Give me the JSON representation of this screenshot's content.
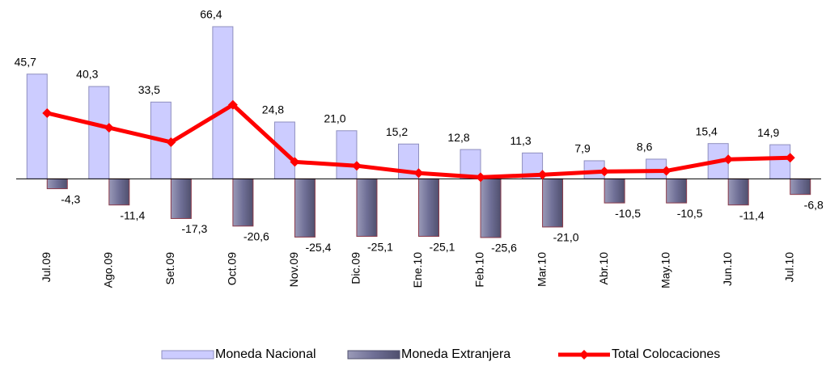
{
  "chart_data": {
    "type": "bar",
    "categories": [
      "Jul.09",
      "Ago.09",
      "Set.09",
      "Oct.09",
      "Nov.09",
      "Dic.09",
      "Ene.10",
      "Feb.10",
      "Mar.10",
      "Abr.10",
      "May.10",
      "Jun.10",
      "Jul.10"
    ],
    "series": [
      {
        "name": "Moneda Nacional",
        "type": "bar",
        "color": "#ccccff",
        "values": [
          45.7,
          40.3,
          33.5,
          66.4,
          24.8,
          21.0,
          15.2,
          12.8,
          11.3,
          7.9,
          8.6,
          15.4,
          14.9
        ],
        "value_labels": [
          "45,7",
          "40,3",
          "33,5",
          "66,4",
          "24,8",
          "21,0",
          "15,2",
          "12,8",
          "11,3",
          "7,9",
          "8,6",
          "15,4",
          "14,9"
        ]
      },
      {
        "name": "Moneda Extranjera",
        "type": "bar",
        "color": "#6f6f96",
        "values": [
          -4.3,
          -11.4,
          -17.3,
          -20.6,
          -25.4,
          -25.1,
          -25.1,
          -25.6,
          -21.0,
          -10.5,
          -10.5,
          -11.4,
          -6.8
        ],
        "value_labels": [
          "-4,3",
          "-11,4",
          "-17,3",
          "-20,6",
          "-25,4",
          "-25,1",
          "-25,1",
          "-25,6",
          "-21,0",
          "-10,5",
          "-10,5",
          "-11,4",
          "-6,8"
        ]
      },
      {
        "name": "Total Colocaciones",
        "type": "line",
        "color": "#ff0000",
        "values": [
          28.7,
          22.3,
          16.0,
          32.3,
          7.4,
          5.7,
          2.5,
          0.7,
          1.8,
          3.2,
          3.5,
          8.5,
          9.2
        ]
      }
    ]
  }
}
